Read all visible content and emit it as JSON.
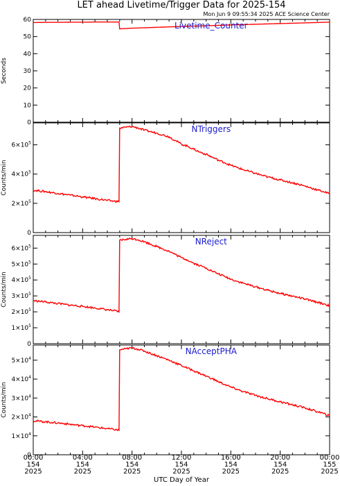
{
  "header": {
    "title": "LET ahead Livetime/Trigger Data for 2025-154",
    "timestamp": "Mon Jun  9 09:55:34 2025 ACE Science Center"
  },
  "chart_data": {
    "type": "line",
    "xlabel": "UTC Day of Year",
    "x_range_hours": [
      0,
      24
    ],
    "x_ticks": [
      {
        "hour": 0,
        "time": "00:00",
        "doy": "154",
        "year": "2025"
      },
      {
        "hour": 4,
        "time": "04:00",
        "doy": "154",
        "year": "2025"
      },
      {
        "hour": 8,
        "time": "08:00",
        "doy": "154",
        "year": "2025"
      },
      {
        "hour": 12,
        "time": "12:00",
        "doy": "154",
        "year": "2025"
      },
      {
        "hour": 16,
        "time": "16:00",
        "doy": "154",
        "year": "2025"
      },
      {
        "hour": 20,
        "time": "20:00",
        "doy": "154",
        "year": "2025"
      },
      {
        "hour": 24,
        "time": "00:00",
        "doy": "155",
        "year": "2025"
      }
    ],
    "line_color": "#ff0000",
    "label_color": "#1a1acc",
    "panels": [
      {
        "name": "Livetime_Counter",
        "ylabel": "Seconds",
        "ylim": [
          0,
          60
        ],
        "yticks": [
          {
            "v": 0,
            "m": "0",
            "e": ""
          },
          {
            "v": 10,
            "m": "10",
            "e": ""
          },
          {
            "v": 20,
            "m": "20",
            "e": ""
          },
          {
            "v": 30,
            "m": "30",
            "e": ""
          },
          {
            "v": 40,
            "m": "40",
            "e": ""
          },
          {
            "v": 50,
            "m": "50",
            "e": ""
          },
          {
            "v": 60,
            "m": "60",
            "e": ""
          }
        ],
        "series": {
          "x": [
            0,
            1,
            2,
            3,
            4,
            5,
            6,
            6.95,
            7.0,
            8,
            10,
            12,
            14,
            16,
            18,
            20,
            22,
            24
          ],
          "y": [
            58.2,
            58.3,
            58.3,
            58.4,
            58.4,
            58.5,
            58.5,
            58.5,
            54.5,
            54.9,
            55.4,
            55.9,
            56.3,
            56.8,
            57.2,
            57.6,
            58.0,
            58.4
          ]
        }
      },
      {
        "name": "NTriggers",
        "ylabel": "Counts/min",
        "ylim": [
          0,
          750000
        ],
        "yticks": [
          {
            "v": 0,
            "m": "0",
            "e": ""
          },
          {
            "v": 200000,
            "m": "2×10",
            "e": "5"
          },
          {
            "v": 400000,
            "m": "4×10",
            "e": "5"
          },
          {
            "v": 600000,
            "m": "6×10",
            "e": "5"
          }
        ],
        "series": {
          "x": [
            0,
            0.5,
            1,
            1.5,
            2,
            2.5,
            3,
            3.5,
            4,
            4.5,
            5,
            5.5,
            6,
            6.5,
            6.95,
            7.0,
            7.5,
            8,
            8.5,
            9,
            9.5,
            10,
            10.5,
            11,
            11.5,
            12,
            12.5,
            13,
            13.5,
            14,
            14.5,
            15,
            15.5,
            16,
            16.5,
            17,
            17.5,
            18,
            18.5,
            19,
            19.5,
            20,
            20.5,
            21,
            21.5,
            22,
            22.5,
            23,
            23.5,
            24
          ],
          "y": [
            290000,
            285000,
            280000,
            274000,
            268000,
            262000,
            256000,
            250000,
            244000,
            238000,
            232000,
            226000,
            220000,
            215000,
            212000,
            715000,
            720000,
            725000,
            715000,
            700000,
            690000,
            680000,
            668000,
            655000,
            630000,
            605000,
            590000,
            570000,
            550000,
            535000,
            515000,
            495000,
            478000,
            460000,
            445000,
            430000,
            418000,
            405000,
            392000,
            380000,
            370000,
            360000,
            350000,
            340000,
            330000,
            318000,
            305000,
            292000,
            280000,
            265000
          ]
        }
      },
      {
        "name": "NReject",
        "ylabel": "Counts/min",
        "ylim": [
          0,
          680000
        ],
        "yticks": [
          {
            "v": 0,
            "m": "0",
            "e": ""
          },
          {
            "v": 100000,
            "m": "1×10",
            "e": "5"
          },
          {
            "v": 200000,
            "m": "2×10",
            "e": "5"
          },
          {
            "v": 300000,
            "m": "3×10",
            "e": "5"
          },
          {
            "v": 400000,
            "m": "4×10",
            "e": "5"
          },
          {
            "v": 500000,
            "m": "5×10",
            "e": "5"
          },
          {
            "v": 600000,
            "m": "6×10",
            "e": "5"
          }
        ],
        "series": {
          "x": [
            0,
            0.5,
            1,
            1.5,
            2,
            2.5,
            3,
            3.5,
            4,
            4.5,
            5,
            5.5,
            6,
            6.5,
            6.95,
            7.0,
            7.5,
            8,
            8.5,
            9,
            9.5,
            10,
            10.5,
            11,
            11.5,
            12,
            12.5,
            13,
            13.5,
            14,
            14.5,
            15,
            15.5,
            16,
            16.5,
            17,
            17.5,
            18,
            18.5,
            19,
            19.5,
            20,
            20.5,
            21,
            21.5,
            22,
            22.5,
            23,
            23.5,
            24
          ],
          "y": [
            270000,
            266000,
            262000,
            257000,
            252000,
            247000,
            242000,
            238000,
            234000,
            229000,
            224000,
            219000,
            213000,
            207000,
            200000,
            650000,
            655000,
            660000,
            652000,
            640000,
            625000,
            610000,
            595000,
            580000,
            560000,
            540000,
            525000,
            505000,
            490000,
            475000,
            455000,
            438000,
            422000,
            405000,
            392000,
            380000,
            368000,
            357000,
            346000,
            335000,
            325000,
            316000,
            307000,
            298000,
            290000,
            280000,
            270000,
            260000,
            250000,
            238000
          ]
        }
      },
      {
        "name": "NAcceptPHA",
        "ylabel": "Counts/min",
        "ylim": [
          0,
          58000
        ],
        "yticks": [
          {
            "v": 0,
            "m": "0",
            "e": ""
          },
          {
            "v": 10000,
            "m": "1×10",
            "e": "4"
          },
          {
            "v": 20000,
            "m": "2×10",
            "e": "4"
          },
          {
            "v": 30000,
            "m": "3×10",
            "e": "4"
          },
          {
            "v": 40000,
            "m": "4×10",
            "e": "4"
          },
          {
            "v": 50000,
            "m": "5×10",
            "e": "4"
          }
        ],
        "series": {
          "x": [
            0,
            0.5,
            1,
            1.5,
            2,
            2.5,
            3,
            3.5,
            4,
            4.5,
            5,
            5.5,
            6,
            6.5,
            6.95,
            7.0,
            7.5,
            8,
            8.5,
            9,
            9.5,
            10,
            10.5,
            11,
            11.5,
            12,
            12.5,
            13,
            13.5,
            14,
            14.5,
            15,
            15.5,
            16,
            16.5,
            17,
            17.5,
            18,
            18.5,
            19,
            19.5,
            20,
            20.5,
            21,
            21.5,
            22,
            22.5,
            23,
            23.5,
            24
          ],
          "y": [
            18000,
            17700,
            17400,
            17100,
            16800,
            16500,
            16100,
            15700,
            15400,
            15000,
            14600,
            14200,
            13800,
            13400,
            13000,
            55500,
            56000,
            56500,
            55800,
            54800,
            53600,
            52400,
            51200,
            50000,
            48600,
            47200,
            45800,
            44400,
            43000,
            41600,
            40200,
            38600,
            37200,
            35800,
            34600,
            33400,
            32400,
            31400,
            30500,
            29600,
            28800,
            28000,
            27200,
            26400,
            25600,
            24800,
            23800,
            22800,
            21800,
            20500
          ]
        }
      }
    ]
  }
}
